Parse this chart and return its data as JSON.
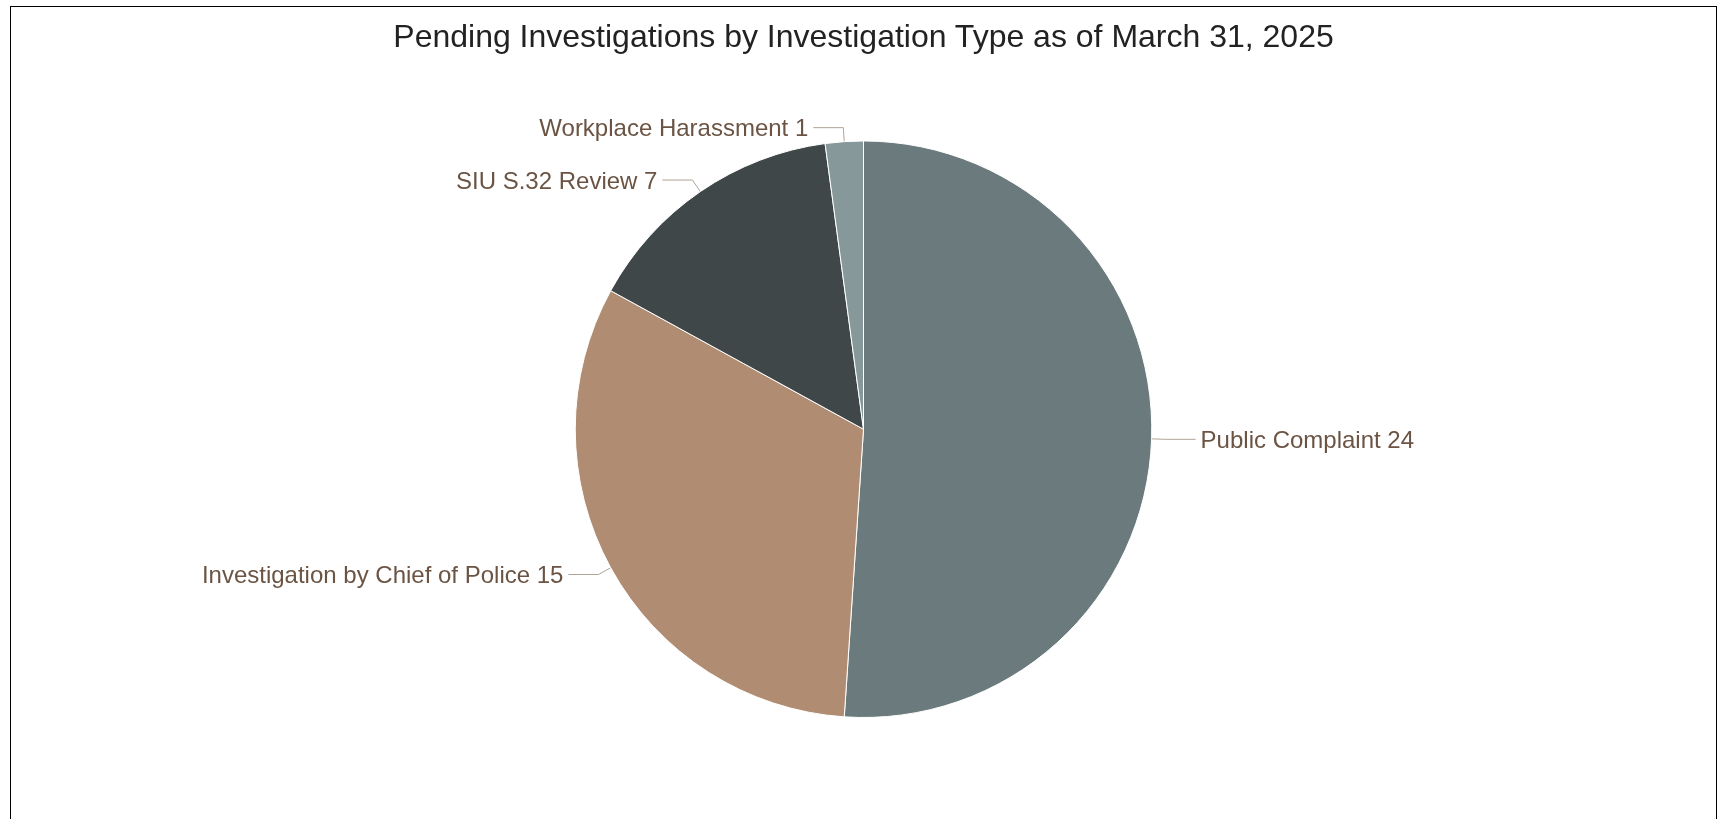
{
  "chart_data": {
    "type": "pie",
    "title": "Pending Investigations by Investigation Type as of March 31, 2025",
    "categories": [
      "Public Complaint",
      "Investigation by Chief of Police",
      "SIU S.32 Review",
      "Workplace Harassment"
    ],
    "values": [
      24,
      15,
      7,
      1
    ],
    "colors": [
      "#6b7a7c",
      "#b08c72",
      "#404749",
      "#86989a"
    ],
    "data_labels": true,
    "legend": false
  }
}
